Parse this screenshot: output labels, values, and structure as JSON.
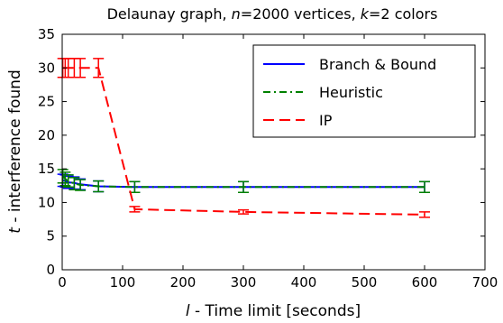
{
  "chart_data": {
    "type": "line",
    "title": "Delaunay graph, n=2000 vertices, k=2 colors",
    "xlabel": "l - Time limit [seconds]",
    "ylabel": "t - interference found",
    "xlim": [
      0,
      700
    ],
    "ylim": [
      0,
      35
    ],
    "xticks": [
      "0",
      "100",
      "200",
      "300",
      "400",
      "500",
      "600",
      "700"
    ],
    "yticks": [
      "0",
      "5",
      "10",
      "15",
      "20",
      "25",
      "30",
      "35"
    ],
    "legend_position": "top-right",
    "series": [
      {
        "name": "Branch & Bound",
        "color": "#0000ff",
        "style": "solid",
        "x": [
          1,
          5,
          10,
          20,
          30,
          60,
          120,
          300,
          600
        ],
        "y": [
          13.3,
          13.2,
          13.0,
          12.9,
          12.7,
          12.4,
          12.3,
          12.3,
          12.3
        ],
        "err": [
          0.9,
          0.9,
          0.9,
          0.9,
          0.8,
          0.8,
          0.8,
          0.8,
          0.8
        ]
      },
      {
        "name": "Heuristic",
        "color": "#008000",
        "style": "dashdot",
        "x": [
          1,
          5,
          10,
          20,
          30,
          60,
          120,
          300,
          600
        ],
        "y": [
          13.9,
          13.5,
          13.2,
          12.8,
          12.6,
          12.4,
          12.3,
          12.3,
          12.3
        ],
        "err": [
          1.0,
          1.0,
          0.9,
          0.9,
          0.8,
          0.8,
          0.8,
          0.8,
          0.8
        ]
      },
      {
        "name": "IP",
        "color": "#ff0000",
        "style": "dashed",
        "x": [
          1,
          5,
          10,
          20,
          30,
          60,
          120,
          300,
          600
        ],
        "y": [
          30.0,
          30.0,
          30.0,
          30.0,
          30.0,
          30.0,
          9.0,
          8.6,
          8.2
        ],
        "err": [
          1.4,
          1.4,
          1.4,
          1.4,
          1.4,
          1.4,
          0.4,
          0.3,
          0.4
        ]
      }
    ]
  }
}
